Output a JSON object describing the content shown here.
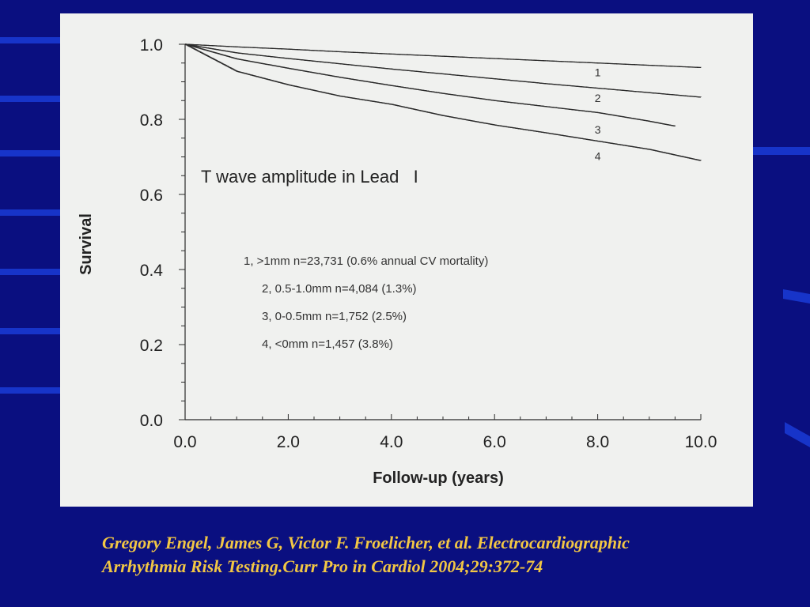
{
  "chart_data": {
    "type": "line",
    "title": "T wave amplitude in Lead   I",
    "xlabel": "Follow-up (years)",
    "ylabel": "Survival",
    "xlim": [
      0,
      10
    ],
    "ylim": [
      0,
      1
    ],
    "x_ticks": [
      "0.0",
      "2.0",
      "4.0",
      "6.0",
      "8.0",
      "10.0"
    ],
    "x_tick_values": [
      0,
      2,
      4,
      6,
      8,
      10
    ],
    "y_ticks": [
      "0.0",
      "0.2",
      "0.4",
      "0.6",
      "0.8",
      "1.0"
    ],
    "y_tick_values": [
      0,
      0.2,
      0.4,
      0.6,
      0.8,
      1.0
    ],
    "grid": false,
    "series": [
      {
        "name": "1",
        "x": [
          0,
          1,
          2,
          3,
          4,
          5,
          6,
          7,
          8,
          9,
          10
        ],
        "y": [
          1.0,
          0.993,
          0.987,
          0.98,
          0.974,
          0.968,
          0.962,
          0.956,
          0.95,
          0.944,
          0.938
        ]
      },
      {
        "name": "2",
        "x": [
          0,
          1,
          2,
          3,
          4,
          5,
          6,
          7,
          8,
          9,
          10
        ],
        "y": [
          1.0,
          0.977,
          0.962,
          0.948,
          0.934,
          0.921,
          0.908,
          0.895,
          0.883,
          0.871,
          0.859
        ]
      },
      {
        "name": "3",
        "x": [
          0,
          1,
          2,
          3,
          4,
          5,
          6,
          7,
          8,
          9,
          9.5
        ],
        "y": [
          1.0,
          0.961,
          0.936,
          0.912,
          0.89,
          0.869,
          0.85,
          0.834,
          0.818,
          0.795,
          0.782
        ]
      },
      {
        "name": "4",
        "x": [
          0,
          1,
          2,
          3,
          4,
          5,
          6,
          7,
          8,
          9,
          10
        ],
        "y": [
          1.0,
          0.928,
          0.892,
          0.862,
          0.84,
          0.81,
          0.785,
          0.764,
          0.742,
          0.72,
          0.69
        ]
      }
    ],
    "curve_labels": [
      {
        "text": "1",
        "x": 8.0,
        "y": 0.915
      },
      {
        "text": "2",
        "x": 8.0,
        "y": 0.846
      },
      {
        "text": "3",
        "x": 8.0,
        "y": 0.762
      },
      {
        "text": "4",
        "x": 8.0,
        "y": 0.692
      }
    ],
    "legend_entries": [
      "1, >1mm n=23,731 (0.6% annual CV mortality)",
      "2, 0.5-1.0mm n=4,084 (1.3%)",
      "3, 0-0.5mm n=1,752 (2.5%)",
      "4, <0mm n=1,457 (3.8%)"
    ]
  },
  "citation": {
    "line1": "Gregory Engel, James G, Victor F. Froelicher, et al. Electrocardiographic",
    "line2": "Arrhythmia Risk Testing.Curr Pro in Cardiol 2004;29:372-74"
  },
  "colors": {
    "background": "#0a0f80",
    "stripe": "#1a3bd6",
    "panel": "#f0f1ef",
    "ink": "#2a2a2a",
    "citation": "#f2c744"
  }
}
